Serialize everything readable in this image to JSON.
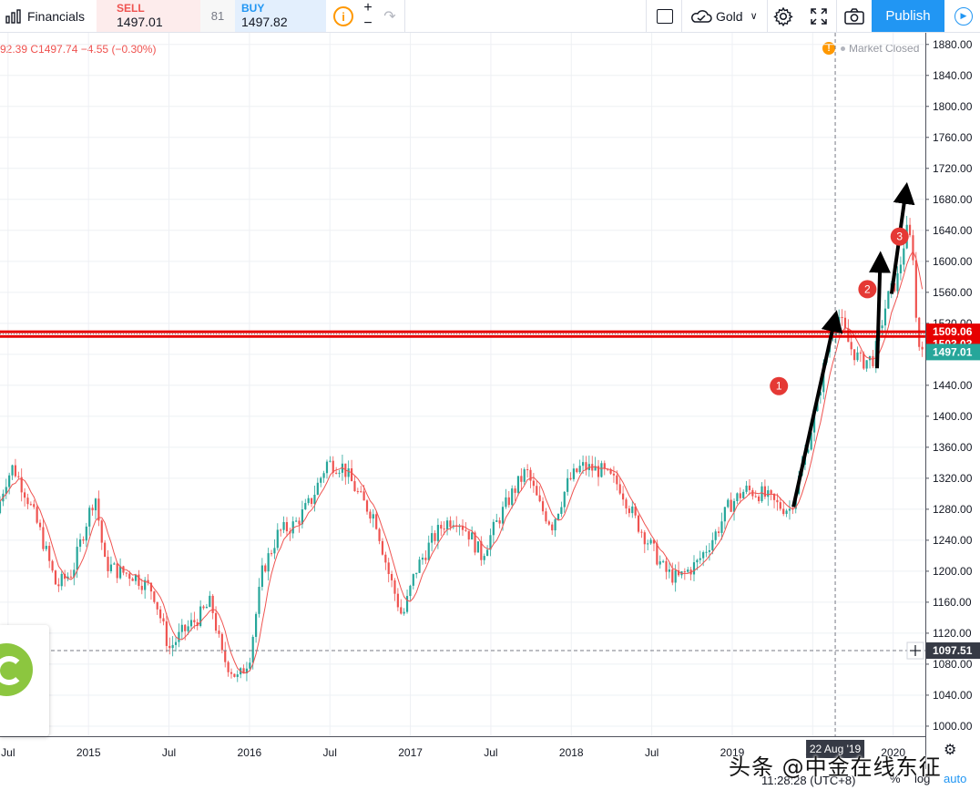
{
  "toolbar": {
    "financials_label": "Financials",
    "sell_label": "SELL",
    "sell_value": "1497.01",
    "spread": "81",
    "buy_label": "BUY",
    "buy_value": "1497.82",
    "info_glyph": "i",
    "plus": "+",
    "minus": "−",
    "symbol": "Gold",
    "publish_label": "Publish",
    "icons": [
      "bar-chart-icon",
      "info-icon",
      "plus-icon",
      "minus-icon",
      "redo-icon",
      "square-icon",
      "cloud-icon",
      "chevron-down-icon",
      "gear-icon",
      "fullscreen-icon",
      "camera-icon",
      "play-icon"
    ]
  },
  "ohlc_text": "92.39  C1497.74  −4.55 (−0.30%)",
  "market_status": "Market Closed",
  "chart_data": {
    "type": "candlestick",
    "symbol": "Gold",
    "x_ticks": [
      "Jul",
      "2015",
      "Jul",
      "2016",
      "Jul",
      "2017",
      "Jul",
      "2018",
      "Jul",
      "2019",
      "Jul",
      "2020"
    ],
    "x_tick_dates": [
      2014.5,
      2015.0,
      2015.5,
      2016.0,
      2016.5,
      2017.0,
      2017.5,
      2018.0,
      2018.5,
      2019.0,
      2019.5,
      2020.0
    ],
    "xlim": [
      2014.45,
      2020.2
    ],
    "y_ticks": [
      1000,
      1040,
      1080,
      1120,
      1160,
      1200,
      1240,
      1280,
      1320,
      1360,
      1400,
      1440,
      1480,
      1520,
      1560,
      1600,
      1640,
      1680,
      1720,
      1760,
      1800,
      1840,
      1880
    ],
    "y_tick_labels": [
      "1000.00",
      "1040.00",
      "1080.00",
      "1120.00",
      "1160.00",
      "1200.00",
      "1240.00",
      "1280.00",
      "1320.00",
      "1360.00",
      "1400.00",
      "1440.00",
      "1480.00",
      "1520.00",
      "1560.00",
      "1600.00",
      "1640.00",
      "1680.00",
      "1720.00",
      "1760.00",
      "1800.00",
      "1840.00",
      "1880.00"
    ],
    "ylim": [
      987,
      1895
    ],
    "price_path": [
      [
        2014.45,
        1275
      ],
      [
        2014.5,
        1315
      ],
      [
        2014.55,
        1335
      ],
      [
        2014.63,
        1300
      ],
      [
        2014.72,
        1250
      ],
      [
        2014.82,
        1180
      ],
      [
        2014.92,
        1200
      ],
      [
        2015.0,
        1260
      ],
      [
        2015.06,
        1300
      ],
      [
        2015.12,
        1210
      ],
      [
        2015.2,
        1200
      ],
      [
        2015.3,
        1195
      ],
      [
        2015.42,
        1175
      ],
      [
        2015.52,
        1100
      ],
      [
        2015.6,
        1120
      ],
      [
        2015.7,
        1140
      ],
      [
        2015.78,
        1160
      ],
      [
        2015.85,
        1090
      ],
      [
        2015.95,
        1060
      ],
      [
        2016.02,
        1090
      ],
      [
        2016.1,
        1200
      ],
      [
        2016.2,
        1250
      ],
      [
        2016.3,
        1260
      ],
      [
        2016.4,
        1290
      ],
      [
        2016.5,
        1340
      ],
      [
        2016.6,
        1335
      ],
      [
        2016.72,
        1290
      ],
      [
        2016.8,
        1270
      ],
      [
        2016.88,
        1200
      ],
      [
        2016.97,
        1140
      ],
      [
        2017.05,
        1200
      ],
      [
        2017.14,
        1235
      ],
      [
        2017.22,
        1260
      ],
      [
        2017.3,
        1270
      ],
      [
        2017.38,
        1250
      ],
      [
        2017.46,
        1220
      ],
      [
        2017.55,
        1260
      ],
      [
        2017.65,
        1300
      ],
      [
        2017.74,
        1330
      ],
      [
        2017.82,
        1285
      ],
      [
        2017.9,
        1260
      ],
      [
        2018.0,
        1315
      ],
      [
        2018.08,
        1335
      ],
      [
        2018.2,
        1330
      ],
      [
        2018.32,
        1310
      ],
      [
        2018.42,
        1265
      ],
      [
        2018.52,
        1230
      ],
      [
        2018.6,
        1200
      ],
      [
        2018.68,
        1190
      ],
      [
        2018.8,
        1210
      ],
      [
        2018.92,
        1250
      ],
      [
        2019.0,
        1285
      ],
      [
        2019.1,
        1305
      ],
      [
        2019.2,
        1300
      ],
      [
        2019.3,
        1285
      ],
      [
        2019.38,
        1280
      ],
      [
        2019.46,
        1340
      ],
      [
        2019.55,
        1420
      ],
      [
        2019.62,
        1500
      ],
      [
        2019.68,
        1530
      ],
      [
        2019.75,
        1490
      ],
      [
        2019.82,
        1470
      ],
      [
        2019.9,
        1475
      ],
      [
        2019.98,
        1550
      ],
      [
        2020.05,
        1580
      ],
      [
        2020.1,
        1640
      ],
      [
        2020.14,
        1620
      ],
      [
        2020.17,
        1490
      ],
      [
        2020.2,
        1497
      ]
    ],
    "annotations": [
      {
        "label": "1",
        "start": [
          2019.38,
          1283
        ],
        "end": [
          2019.64,
          1528
        ],
        "badge": [
          2019.29,
          1439
        ]
      },
      {
        "label": "2",
        "start": [
          2019.9,
          1462
        ],
        "end": [
          2019.92,
          1604
        ],
        "badge": [
          2019.84,
          1564
        ]
      },
      {
        "label": "3",
        "start": [
          2019.99,
          1558
        ],
        "end": [
          2020.08,
          1693
        ],
        "badge": [
          2020.04,
          1632
        ]
      }
    ],
    "horizontal_levels": [
      {
        "value": 1509.06,
        "label": "1509.06",
        "color": "#e60000"
      },
      {
        "value": 1503.03,
        "label": "1503.03",
        "color": "#e60000"
      },
      {
        "value": 1497.01,
        "label": "1497.01",
        "color": "#26a69a"
      },
      {
        "value": 1097.51,
        "label": "1097.51",
        "color": "#787b86"
      }
    ],
    "crosshair": {
      "date_label": "22 Aug '19",
      "price_label": "1097.51",
      "x": 2019.64,
      "y": 1097.51
    },
    "colors": {
      "up": "#26a69a",
      "down": "#ef5350",
      "ma": "#ef5350"
    }
  },
  "bottom": {
    "time": "11:28:28 (UTC+8)",
    "percent": "%",
    "log": "log",
    "auto": "auto"
  },
  "watermark": "头条 @中金在线东征"
}
